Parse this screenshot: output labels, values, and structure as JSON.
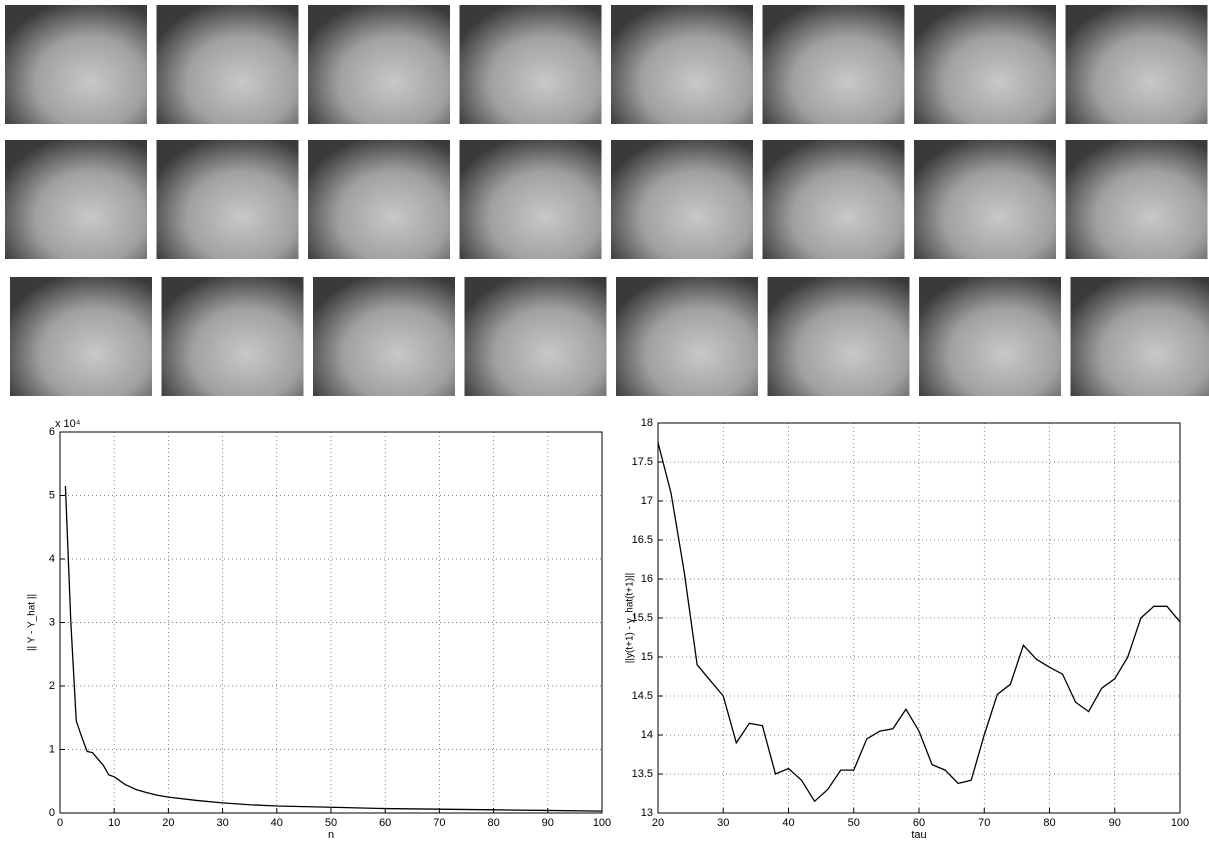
{
  "chart_data": [
    {
      "type": "line",
      "xlabel": "n",
      "ylabel": "|| Y - Y_hat ||",
      "y_multiplier": "x 10⁴",
      "color": "#000000",
      "grid": true,
      "x": [
        1,
        2,
        3,
        4,
        5,
        6,
        7,
        8,
        9,
        10,
        12,
        14,
        16,
        18,
        20,
        25,
        30,
        35,
        40,
        50,
        60,
        70,
        80,
        90,
        100
      ],
      "values": [
        5.15,
        3.0,
        1.45,
        1.2,
        0.97,
        0.95,
        0.85,
        0.75,
        0.6,
        0.57,
        0.45,
        0.37,
        0.32,
        0.28,
        0.25,
        0.2,
        0.16,
        0.13,
        0.11,
        0.09,
        0.07,
        0.06,
        0.05,
        0.04,
        0.03
      ],
      "xlim": [
        0,
        100
      ],
      "xticks": [
        0,
        10,
        20,
        30,
        40,
        50,
        60,
        70,
        80,
        90,
        100
      ],
      "ylim": [
        0,
        6
      ],
      "yticks": [
        0,
        1,
        2,
        3,
        4,
        5,
        6
      ]
    },
    {
      "type": "line",
      "xlabel": "tau",
      "ylabel": "||y(t+1) - y_hat(t+1)||",
      "color": "#000000",
      "grid": true,
      "x": [
        20,
        22,
        24,
        26,
        28,
        30,
        32,
        34,
        36,
        38,
        40,
        42,
        44,
        46,
        48,
        50,
        52,
        54,
        56,
        58,
        60,
        62,
        64,
        66,
        68,
        70,
        72,
        74,
        76,
        78,
        80,
        82,
        84,
        86,
        88,
        90,
        92,
        94,
        96,
        98,
        100
      ],
      "values": [
        17.75,
        17.1,
        16.1,
        14.9,
        14.7,
        14.5,
        13.9,
        14.15,
        14.12,
        13.5,
        13.57,
        13.42,
        13.15,
        13.3,
        13.55,
        13.55,
        13.95,
        14.05,
        14.08,
        14.33,
        14.05,
        13.62,
        13.55,
        13.38,
        13.42,
        14.0,
        14.52,
        14.65,
        15.15,
        14.97,
        14.87,
        14.78,
        14.42,
        14.3,
        14.6,
        14.72,
        15.0,
        15.5,
        15.65,
        15.65,
        15.45
      ],
      "xlim": [
        20,
        100
      ],
      "xticks": [
        20,
        30,
        40,
        50,
        60,
        70,
        80,
        90,
        100
      ],
      "ylim": [
        13,
        18
      ],
      "yticks": [
        13,
        13.5,
        14,
        14.5,
        15,
        15.5,
        16,
        16.5,
        17,
        17.5,
        18
      ]
    }
  ]
}
